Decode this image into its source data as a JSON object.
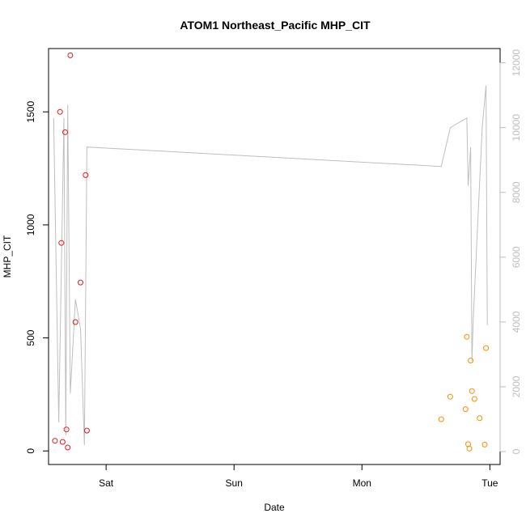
{
  "chart_data": {
    "type": "scatter",
    "title": "ATOM1 Northeast_Pacific MHP_CIT",
    "xlabel": "Date",
    "ylabel": "MHP_CIT",
    "x_unit": "days",
    "xlim": [
      -0.45,
      3.08
    ],
    "ylim": [
      -60,
      1780
    ],
    "y2lim": [
      -400,
      12440
    ],
    "x_ticks": [
      {
        "value": 0,
        "label": "Sat"
      },
      {
        "value": 1,
        "label": "Sun"
      },
      {
        "value": 2,
        "label": "Mon"
      },
      {
        "value": 3,
        "label": "Tue"
      }
    ],
    "y_ticks": [
      0,
      500,
      1000,
      1500
    ],
    "y2_ticks": [
      0,
      2000,
      4000,
      6000,
      8000,
      10000,
      12000
    ],
    "colors": {
      "group1": "#e31a1c",
      "group2": "#ff8c00",
      "line": "#bfbfbf",
      "axis": "#000000",
      "right_axis": "#bdbdbd"
    },
    "series": [
      {
        "axis": "left",
        "marker": "circle",
        "color": "#e31a1c",
        "points": [
          [
            -0.4,
            45
          ],
          [
            -0.36,
            1500
          ],
          [
            -0.35,
            920
          ],
          [
            -0.34,
            40
          ],
          [
            -0.32,
            1410
          ],
          [
            -0.31,
            95
          ],
          [
            -0.3,
            15
          ],
          [
            -0.28,
            1750
          ],
          [
            -0.24,
            570
          ],
          [
            -0.2,
            745
          ],
          [
            -0.16,
            1220
          ],
          [
            -0.15,
            90
          ]
        ]
      },
      {
        "axis": "left",
        "marker": "circle",
        "color": "#ff8c00",
        "points": [
          [
            2.62,
            140
          ],
          [
            2.69,
            240
          ],
          [
            2.81,
            185
          ],
          [
            2.82,
            505
          ],
          [
            2.83,
            30
          ],
          [
            2.84,
            10
          ],
          [
            2.85,
            400
          ],
          [
            2.86,
            265
          ],
          [
            2.88,
            230
          ],
          [
            2.92,
            145
          ],
          [
            2.96,
            28
          ],
          [
            2.97,
            455
          ]
        ]
      },
      {
        "axis": "right",
        "type": "line",
        "color": "#bfbfbf",
        "points": [
          [
            -0.41,
            10300
          ],
          [
            -0.37,
            900
          ],
          [
            -0.33,
            10300
          ],
          [
            -0.315,
            500
          ],
          [
            -0.3,
            10700
          ],
          [
            -0.28,
            1800
          ],
          [
            -0.24,
            4700
          ],
          [
            -0.2,
            3800
          ],
          [
            -0.17,
            200
          ],
          [
            -0.15,
            9400
          ],
          [
            2.62,
            8800
          ],
          [
            2.69,
            10000
          ],
          [
            2.82,
            10300
          ],
          [
            2.83,
            8200
          ],
          [
            2.85,
            9400
          ],
          [
            2.86,
            2800
          ],
          [
            2.87,
            4100
          ],
          [
            2.94,
            10000
          ],
          [
            2.97,
            11300
          ],
          [
            2.98,
            3900
          ]
        ]
      }
    ]
  }
}
